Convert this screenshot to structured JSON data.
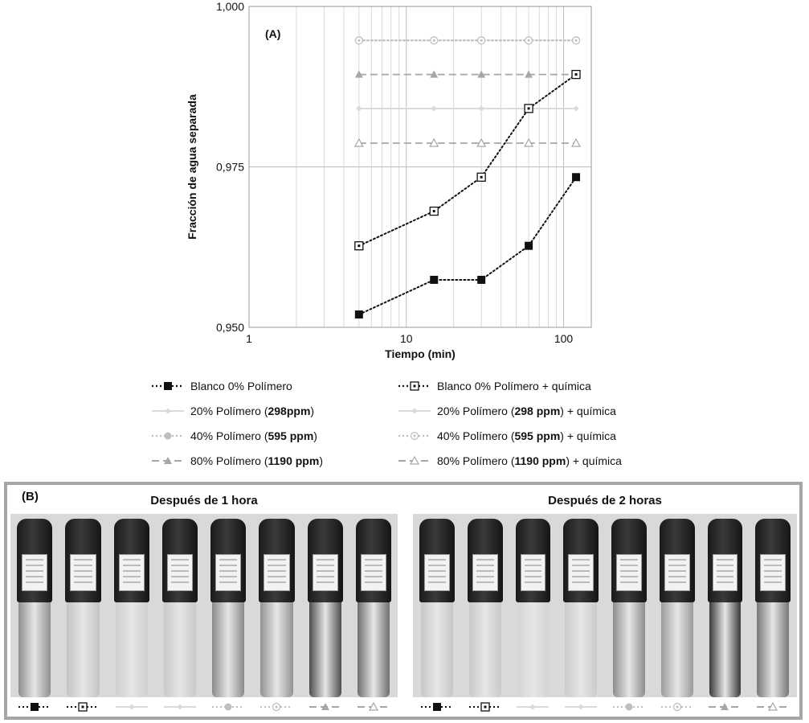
{
  "chart_data": {
    "type": "line",
    "panel_label": "(A)",
    "xlabel": "Tiempo (min)",
    "ylabel": "Fracción de agua separada",
    "x_scale": "log",
    "xlim": [
      1,
      150
    ],
    "ylim": [
      0.95,
      1.0
    ],
    "x_ticks": [
      1,
      10,
      100
    ],
    "x_tick_labels": [
      "1",
      "10",
      "100"
    ],
    "y_ticks": [
      0.95,
      0.975,
      1.0
    ],
    "y_tick_labels": [
      "0,950",
      "0,975",
      "1,000"
    ],
    "grid": true,
    "legend_position": "bottom",
    "series": [
      {
        "key": "s1",
        "label_plain": "Blanco 0% Polímero",
        "label_bold": "",
        "label_after": "",
        "x": [
          5,
          15,
          30,
          60,
          120
        ],
        "values": [
          0.952,
          0.9574,
          0.9574,
          0.9627,
          0.9734
        ],
        "color": "#111111",
        "line": "dotted",
        "marker": "square-filled"
      },
      {
        "key": "s2",
        "label_plain": "Blanco 0% Polímero + química",
        "label_bold": "",
        "label_after": "",
        "x": [
          5,
          15,
          30,
          60,
          120
        ],
        "values": [
          0.9627,
          0.9681,
          0.9734,
          0.9841,
          0.9894
        ],
        "color": "#111111",
        "line": "dotted",
        "marker": "square-dot"
      },
      {
        "key": "s3",
        "label_plain": "20% Polímero (",
        "label_bold": "298ppm",
        "label_after": ")",
        "x": [
          5,
          15,
          30,
          60,
          120
        ],
        "values": [
          0.9841,
          0.9841,
          0.9841,
          0.9841,
          0.9841
        ],
        "color": "#d9d9d9",
        "line": "solid",
        "marker": "diamond-small"
      },
      {
        "key": "s4",
        "label_plain": "20% Polímero (",
        "label_bold": "298 ppm",
        "label_after": ") + química",
        "x": [
          5,
          15,
          30,
          60,
          120
        ],
        "values": [
          0.9841,
          0.9841,
          0.9841,
          0.9841,
          0.9841
        ],
        "color": "#d9d9d9",
        "line": "solid",
        "marker": "diamond-small"
      },
      {
        "key": "s5",
        "label_plain": "40% Polímero (",
        "label_bold": "595 ppm",
        "label_after": ")",
        "x": [
          5,
          15,
          30,
          60,
          120
        ],
        "values": [
          0.9947,
          0.9947,
          0.9947,
          0.9947,
          0.9947
        ],
        "color": "#bfbfbf",
        "line": "dotted",
        "marker": "circle-filled"
      },
      {
        "key": "s6",
        "label_plain": "40% Polímero (",
        "label_bold": "595 ppm",
        "label_after": ") + química",
        "x": [
          5,
          15,
          30,
          60,
          120
        ],
        "values": [
          0.9947,
          0.9947,
          0.9947,
          0.9947,
          0.9947
        ],
        "color": "#bfbfbf",
        "line": "dotted",
        "marker": "circle-dot"
      },
      {
        "key": "s7",
        "label_plain": "80% Polímero (",
        "label_bold": "1190 ppm",
        "label_after": ")",
        "x": [
          5,
          15,
          30,
          60,
          120
        ],
        "values": [
          0.9894,
          0.9894,
          0.9894,
          0.9894,
          0.9894
        ],
        "color": "#a6a6a6",
        "line": "dashed",
        "marker": "triangle-filled"
      },
      {
        "key": "s8",
        "label_plain": "80% Polímero (",
        "label_bold": "1190 ppm",
        "label_after": ") + química",
        "x": [
          5,
          15,
          30,
          60,
          120
        ],
        "values": [
          0.9787,
          0.9787,
          0.9787,
          0.9787,
          0.9787
        ],
        "color": "#a6a6a6",
        "line": "dashed",
        "marker": "triangle-open"
      }
    ]
  },
  "panel_b": {
    "label": "(B)",
    "groups": [
      {
        "title": "Después de 1 hora",
        "fills": [
          "#8f8f8f",
          "#c4c4c4",
          "#cfcfcf",
          "#c9c9c9",
          "#8a8a8a",
          "#939393",
          "#4d4d4d",
          "#6e6e6e"
        ]
      },
      {
        "title": "Después de 2 horas",
        "fills": [
          "#c7c7c7",
          "#c9c9c9",
          "#d4d4d4",
          "#cbcbcb",
          "#8d8d8d",
          "#9a9a9a",
          "#3a3a3a",
          "#777777"
        ]
      }
    ]
  }
}
